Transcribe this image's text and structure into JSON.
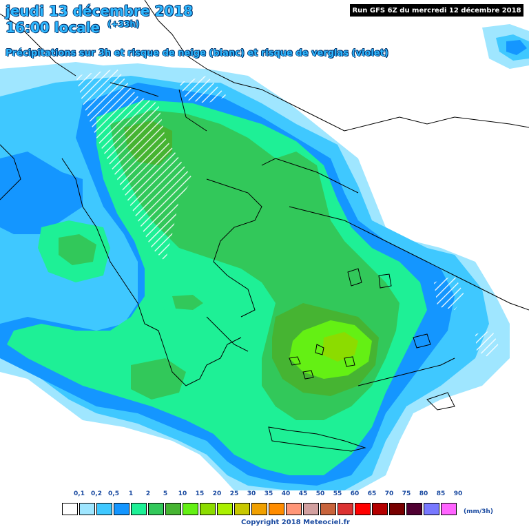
{
  "header": {
    "date_line": "jeudi 13 décembre 2018",
    "time_line": "16:00 locale",
    "lead_time": "(+33h)",
    "subtitle": "Précipitations sur 3h et risque de neige (blanc) et risque de verglas (violet)",
    "run_info": "Run GFS 6Z du mercredi 12 décembre 2018"
  },
  "legend": {
    "ticks": [
      "0,1",
      "0,2",
      "0,5",
      "1",
      "2",
      "5",
      "10",
      "15",
      "20",
      "25",
      "30",
      "35",
      "40",
      "45",
      "50",
      "55",
      "60",
      "65",
      "70",
      "75",
      "80",
      "85",
      "90"
    ],
    "colors": [
      "#ffffff",
      "#9fe6ff",
      "#3fc8ff",
      "#1496ff",
      "#1ef096",
      "#32c85a",
      "#46b432",
      "#64f014",
      "#8cdc00",
      "#aaf000",
      "#c8c800",
      "#f0a000",
      "#ff8c00",
      "#ff9678",
      "#d2a0a0",
      "#c8643c",
      "#dc3232",
      "#ff0000",
      "#b40000",
      "#780000",
      "#500032",
      "#7878ff",
      "#ff64ff"
    ],
    "unit": "(mm/3h)",
    "copyright": "Copyright 2018 Meteociel.fr"
  },
  "map_colors": {
    "land_base": "#ffffff",
    "light_blue": "#9fe6ff",
    "mid_blue": "#3fc8ff",
    "deep_blue": "#1496ff",
    "mint": "#1ef096",
    "green": "#32c85a",
    "dark_green": "#46b432",
    "bright_green": "#64f014",
    "lime": "#8cdc00",
    "snow_hatch": "#ffffff",
    "coastline": "#000000"
  }
}
